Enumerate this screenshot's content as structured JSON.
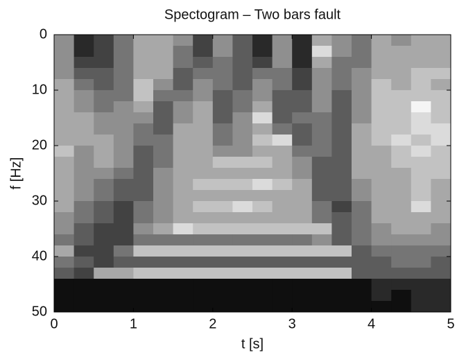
{
  "chart_data": {
    "type": "heatmap",
    "title": "Spectogram – Two bars fault",
    "x_label": "t [s]",
    "y_label": "f [Hz]",
    "xlim": [
      0,
      5
    ],
    "xticks": [
      0,
      1,
      2,
      3,
      4,
      5
    ],
    "ylim": [
      0,
      50
    ],
    "yticks": [
      0,
      10,
      20,
      30,
      40,
      50
    ],
    "y_inverted": true,
    "colormap": "gray",
    "zlim": [
      0,
      9
    ],
    "xbins": [
      0,
      0.25,
      0.5,
      0.75,
      1,
      1.25,
      1.5,
      1.75,
      2,
      2.25,
      2.5,
      2.75,
      3,
      3.25,
      3.5,
      3.75,
      4,
      4.25,
      4.5,
      4.75,
      5
    ],
    "ybins": [
      0,
      2,
      4,
      6,
      8,
      10,
      12,
      14,
      16,
      18,
      20,
      22,
      24,
      26,
      28,
      30,
      32,
      34,
      36,
      38,
      40,
      42,
      44,
      46,
      48,
      50
    ],
    "z": [
      [
        5,
        1,
        2,
        4,
        6,
        6,
        5,
        2,
        5,
        3,
        1,
        5,
        1,
        6,
        5,
        4,
        6,
        5,
        6,
        6
      ],
      [
        5,
        1,
        2,
        4,
        6,
        6,
        4,
        2,
        5,
        3,
        1,
        5,
        1,
        8,
        5,
        4,
        6,
        6,
        6,
        6
      ],
      [
        5,
        2,
        2,
        4,
        6,
        6,
        4,
        3,
        4,
        3,
        2,
        5,
        1,
        6,
        4,
        4,
        6,
        6,
        6,
        6
      ],
      [
        5,
        3,
        3,
        4,
        6,
        6,
        3,
        4,
        4,
        3,
        4,
        4,
        2,
        5,
        4,
        5,
        6,
        6,
        7,
        7
      ],
      [
        6,
        4,
        3,
        4,
        7,
        5,
        3,
        5,
        4,
        3,
        5,
        4,
        2,
        5,
        4,
        5,
        7,
        6,
        7,
        6
      ],
      [
        6,
        5,
        4,
        4,
        7,
        4,
        4,
        5,
        3,
        4,
        5,
        3,
        3,
        5,
        3,
        5,
        7,
        7,
        7,
        7
      ],
      [
        6,
        5,
        4,
        5,
        6,
        3,
        5,
        6,
        3,
        4,
        6,
        3,
        3,
        5,
        3,
        5,
        7,
        7,
        9,
        7
      ],
      [
        6,
        6,
        5,
        5,
        5,
        3,
        5,
        6,
        3,
        5,
        8,
        3,
        4,
        4,
        3,
        5,
        7,
        7,
        8,
        7
      ],
      [
        6,
        6,
        5,
        5,
        4,
        3,
        6,
        6,
        4,
        5,
        6,
        4,
        3,
        4,
        3,
        6,
        7,
        7,
        8,
        8
      ],
      [
        6,
        6,
        6,
        5,
        4,
        4,
        6,
        6,
        4,
        5,
        7,
        8,
        3,
        4,
        3,
        6,
        7,
        8,
        7,
        8
      ],
      [
        7,
        5,
        6,
        5,
        3,
        4,
        6,
        6,
        5,
        5,
        6,
        6,
        4,
        4,
        3,
        6,
        6,
        7,
        8,
        7
      ],
      [
        6,
        5,
        6,
        5,
        3,
        4,
        6,
        6,
        7,
        7,
        7,
        6,
        5,
        3,
        3,
        6,
        6,
        7,
        7,
        7
      ],
      [
        6,
        5,
        5,
        4,
        3,
        5,
        6,
        6,
        6,
        6,
        6,
        6,
        5,
        3,
        3,
        6,
        6,
        6,
        7,
        7
      ],
      [
        6,
        5,
        4,
        3,
        3,
        5,
        6,
        7,
        7,
        7,
        8,
        7,
        6,
        3,
        3,
        5,
        6,
        6,
        7,
        6
      ],
      [
        6,
        5,
        4,
        3,
        3,
        5,
        6,
        6,
        6,
        6,
        6,
        6,
        6,
        3,
        3,
        5,
        6,
        6,
        7,
        6
      ],
      [
        6,
        4,
        3,
        2,
        4,
        5,
        6,
        7,
        7,
        8,
        7,
        6,
        6,
        4,
        2,
        4,
        6,
        6,
        8,
        6
      ],
      [
        5,
        4,
        3,
        2,
        4,
        5,
        6,
        6,
        6,
        6,
        6,
        6,
        6,
        4,
        3,
        4,
        6,
        6,
        6,
        6
      ],
      [
        5,
        3,
        2,
        2,
        5,
        6,
        8,
        7,
        7,
        7,
        7,
        7,
        7,
        7,
        3,
        4,
        5,
        6,
        6,
        5
      ],
      [
        4,
        3,
        2,
        2,
        4,
        4,
        4,
        4,
        4,
        4,
        4,
        4,
        4,
        5,
        3,
        4,
        5,
        5,
        5,
        5
      ],
      [
        6,
        2,
        2,
        4,
        7,
        7,
        7,
        7,
        7,
        7,
        7,
        7,
        7,
        7,
        7,
        3,
        4,
        4,
        4,
        4
      ],
      [
        4,
        3,
        2,
        3,
        3,
        3,
        3,
        3,
        3,
        3,
        3,
        3,
        3,
        3,
        3,
        3,
        3,
        4,
        4,
        3
      ],
      [
        3,
        2,
        6,
        6,
        7,
        7,
        7,
        7,
        7,
        7,
        7,
        7,
        7,
        7,
        7,
        3,
        3,
        3,
        3,
        3
      ],
      [
        0,
        0,
        0,
        0,
        0,
        0,
        0,
        0,
        0,
        0,
        0,
        0,
        0,
        0,
        0,
        0,
        1,
        1,
        1,
        1
      ],
      [
        0,
        0,
        0,
        0,
        0,
        0,
        0,
        0,
        0,
        0,
        0,
        0,
        0,
        0,
        0,
        0,
        1,
        0,
        1,
        1
      ],
      [
        0,
        0,
        0,
        0,
        0,
        0,
        0,
        0,
        0,
        0,
        0,
        0,
        0,
        0,
        0,
        0,
        0,
        0,
        1,
        1
      ]
    ]
  }
}
